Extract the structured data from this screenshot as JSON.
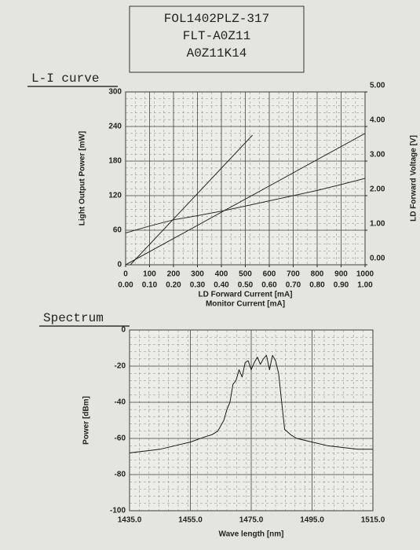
{
  "header": {
    "lines": [
      "FOL1402PLZ-317",
      "FLT-A0Z11",
      "A0Z11K14"
    ]
  },
  "chart_data": [
    {
      "type": "line",
      "title": "L-I curve",
      "xlabel": "LD Forward Current [mA]",
      "x2label": "Monitor Current [mA]",
      "ylabel": "Light Output Power [mW]",
      "y2label": "LD Forward Voltage [V]",
      "xlim": [
        0,
        1000
      ],
      "xticks": [
        0,
        100,
        200,
        300,
        400,
        500,
        600,
        700,
        800,
        900,
        1000
      ],
      "x2lim": [
        0,
        1
      ],
      "x2ticks": [
        {
          "value": 0,
          "label": "0.00"
        },
        {
          "value": 0.1,
          "label": "0.10"
        },
        {
          "value": 0.2,
          "label": "0.20"
        },
        {
          "value": 0.3,
          "label": "0.30"
        },
        {
          "value": 0.4,
          "label": "0.40"
        },
        {
          "value": 0.5,
          "label": "0.50"
        },
        {
          "value": 0.6,
          "label": "0.60"
        },
        {
          "value": 0.7,
          "label": "0.70"
        },
        {
          "value": 0.8,
          "label": "0.80"
        },
        {
          "value": 0.9,
          "label": "0.90"
        },
        {
          "value": 1,
          "label": "1.00"
        }
      ],
      "ylim": [
        0,
        300
      ],
      "yticks": [
        0,
        60,
        120,
        180,
        240,
        300
      ],
      "y2lim": [
        0,
        5
      ],
      "y2ticks": [
        {
          "value": 0,
          "label": "0.00"
        },
        {
          "value": 1,
          "label": "1.00"
        },
        {
          "value": 2,
          "label": "2.00"
        },
        {
          "value": 3,
          "label": "3.00"
        },
        {
          "value": 4,
          "label": "4.00"
        },
        {
          "value": 5,
          "label": "5.00"
        }
      ],
      "grid": true,
      "series": [
        {
          "color": "#2a2a2a",
          "x": [
            20,
            530
          ],
          "values": [
            0,
            225
          ]
        },
        {
          "color": "#2a2a2a",
          "xaxis": "x2",
          "x": [
            0,
            1
          ],
          "values": [
            0,
            228
          ]
        },
        {
          "color": "#2a2a2a",
          "axis": "y2",
          "x": [
            0,
            100,
            200,
            300,
            400,
            500,
            600,
            700,
            800,
            900,
            1000
          ],
          "values": [
            0.92,
            1.12,
            1.3,
            1.42,
            1.55,
            1.7,
            1.85,
            2.0,
            2.15,
            2.32,
            2.5
          ]
        }
      ]
    },
    {
      "type": "line",
      "title": "Spectrum",
      "xlabel": "Wave length [nm]",
      "ylabel": "Power [dBm]",
      "xlim": [
        1435,
        1515
      ],
      "xticks": [
        {
          "value": 1435,
          "label": "1435.0"
        },
        {
          "value": 1455,
          "label": "1455.0"
        },
        {
          "value": 1475,
          "label": "1475.0"
        },
        {
          "value": 1495,
          "label": "1495.0"
        },
        {
          "value": 1515,
          "label": "1515.0"
        }
      ],
      "ylim": [
        -100,
        0
      ],
      "yticks": [
        -100,
        -80,
        -60,
        -40,
        -20,
        0
      ],
      "grid": true,
      "series": [
        {
          "color": "#1a1a1a",
          "x": [
            1435,
            1440,
            1445,
            1450,
            1455,
            1460,
            1462,
            1464,
            1466,
            1467,
            1468,
            1469,
            1470,
            1471,
            1472,
            1473,
            1474,
            1475,
            1476,
            1477,
            1478,
            1479,
            1480,
            1481,
            1482,
            1483,
            1484,
            1485,
            1486,
            1488,
            1490,
            1495,
            1500,
            1505,
            1510,
            1515
          ],
          "values": [
            -68,
            -67,
            -66,
            -64,
            -62,
            -59,
            -58,
            -56,
            -50,
            -44,
            -40,
            -30,
            -28,
            -22,
            -26,
            -18,
            -17,
            -22,
            -18,
            -15,
            -19,
            -16,
            -14,
            -22,
            -14,
            -17,
            -24,
            -40,
            -55,
            -58,
            -60,
            -62,
            -64,
            -65,
            -66,
            -66
          ]
        }
      ]
    }
  ]
}
